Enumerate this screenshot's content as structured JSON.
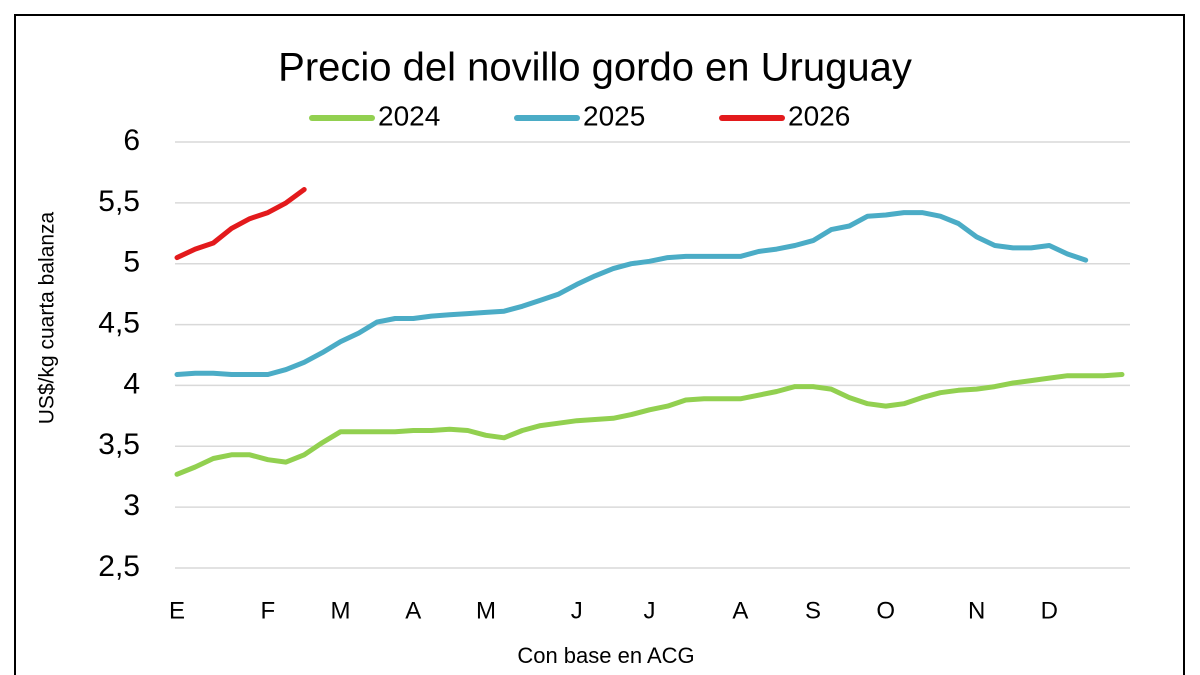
{
  "chart_data": {
    "type": "line",
    "title": "Precio del novillo gordo en Uruguay",
    "x_label": "Con base en ACG",
    "y_label": "US$/kg cuarta balanza",
    "categories": [
      "E",
      null,
      null,
      null,
      null,
      "F",
      null,
      null,
      null,
      "M",
      null,
      null,
      null,
      "A",
      null,
      null,
      null,
      "M",
      null,
      null,
      null,
      null,
      "J",
      null,
      null,
      null,
      "J",
      null,
      null,
      null,
      null,
      "A",
      null,
      null,
      null,
      "S",
      null,
      null,
      null,
      "O",
      null,
      null,
      null,
      null,
      "N",
      null,
      null,
      null,
      "D",
      null,
      null,
      null,
      null
    ],
    "series": [
      {
        "name": "2024",
        "color": "#92d050",
        "values": [
          3.27,
          3.33,
          3.4,
          3.43,
          3.43,
          3.39,
          3.37,
          3.43,
          3.53,
          3.62,
          3.62,
          3.62,
          3.62,
          3.63,
          3.63,
          3.64,
          3.63,
          3.59,
          3.57,
          3.63,
          3.67,
          3.69,
          3.71,
          3.72,
          3.73,
          3.76,
          3.8,
          3.83,
          3.88,
          3.89,
          3.89,
          3.89,
          3.92,
          3.95,
          3.99,
          3.99,
          3.97,
          3.9,
          3.85,
          3.83,
          3.85,
          3.9,
          3.94,
          3.96,
          3.97,
          3.99,
          4.02,
          4.04,
          4.06,
          4.08,
          4.08,
          4.08,
          4.09
        ]
      },
      {
        "name": "2025",
        "color": "#4bacc6",
        "values": [
          4.09,
          4.1,
          4.1,
          4.09,
          4.09,
          4.09,
          4.13,
          4.19,
          4.27,
          4.36,
          4.43,
          4.52,
          4.55,
          4.55,
          4.57,
          4.58,
          4.59,
          4.6,
          4.61,
          4.65,
          4.7,
          4.75,
          4.83,
          4.9,
          4.96,
          5.0,
          5.02,
          5.05,
          5.06,
          5.06,
          5.06,
          5.06,
          5.1,
          5.12,
          5.15,
          5.19,
          5.28,
          5.31,
          5.39,
          5.4,
          5.42,
          5.42,
          5.39,
          5.33,
          5.22,
          5.15,
          5.13,
          5.13,
          5.15,
          5.08,
          5.03,
          null,
          null
        ]
      },
      {
        "name": "2026",
        "color": "#e31a1c",
        "values": [
          5.05,
          5.12,
          5.17,
          5.29,
          5.37,
          5.42,
          5.5,
          5.61,
          null,
          null,
          null,
          null,
          null,
          null,
          null,
          null,
          null,
          null,
          null,
          null,
          null,
          null,
          null,
          null,
          null,
          null,
          null,
          null,
          null,
          null,
          null,
          null,
          null,
          null,
          null,
          null,
          null,
          null,
          null,
          null,
          null,
          null,
          null,
          null,
          null,
          null,
          null,
          null,
          null,
          null,
          null,
          null,
          null
        ]
      }
    ],
    "ylim": [
      2.5,
      6
    ],
    "yticks": [
      {
        "value": 2.5,
        "label": "2,5"
      },
      3,
      {
        "value": 3.5,
        "label": "3,5"
      },
      4,
      {
        "value": 4.5,
        "label": "4,5"
      },
      5,
      {
        "value": 5.5,
        "label": "5,5"
      },
      6
    ],
    "grid": true,
    "legend": "top"
  }
}
